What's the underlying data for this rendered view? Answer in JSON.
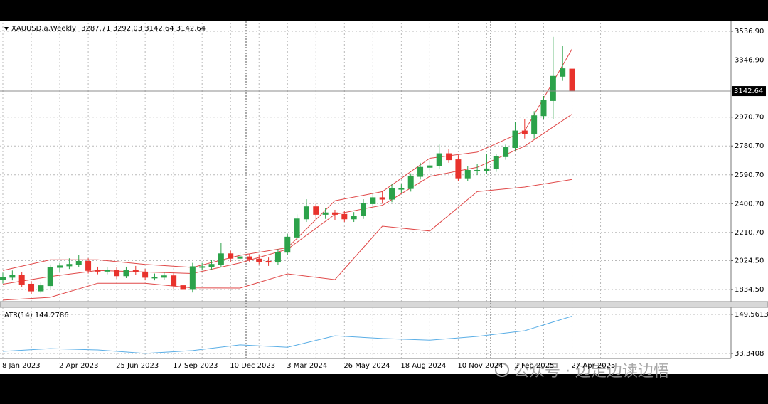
{
  "chart_data": [
    {
      "type": "candlestick",
      "symbol": "XAUUSD.a,Weekly",
      "x": [
        0,
        2,
        4,
        6,
        8,
        10,
        12,
        14,
        16,
        18,
        20,
        22,
        24,
        26,
        28,
        30,
        32,
        34,
        36,
        38,
        40,
        42,
        44,
        46,
        48,
        50,
        52,
        54,
        56,
        58,
        60,
        62,
        64,
        66,
        68,
        70,
        72,
        74,
        76,
        78,
        80,
        82,
        84,
        86,
        88,
        90,
        92,
        94,
        96,
        98,
        100,
        102,
        104,
        106,
        108,
        110,
        112,
        114,
        116,
        118,
        120
      ],
      "open": [
        1900,
        1915,
        1930,
        1870,
        1825,
        1860,
        1980,
        1990,
        2000,
        2020,
        1960,
        1955,
        1960,
        1925,
        1960,
        1950,
        1915,
        1915,
        1925,
        1860,
        1835,
        1985,
        1985,
        2000,
        2070,
        2040,
        2050,
        2035,
        2020,
        2015,
        2080,
        2180,
        2300,
        2380,
        2330,
        2340,
        2330,
        2300,
        2320,
        2400,
        2440,
        2430,
        2500,
        2500,
        2580,
        2640,
        2650,
        2730,
        2690,
        2570,
        2620,
        2620,
        2630,
        2710,
        2770,
        2880,
        2860,
        2980,
        3080,
        3240,
        3287.71
      ],
      "high": [
        1945,
        1960,
        1950,
        1890,
        1880,
        2000,
        2010,
        2040,
        2060,
        2040,
        1985,
        1985,
        1980,
        1985,
        1990,
        1970,
        1940,
        1950,
        1945,
        1880,
        2010,
        2010,
        2030,
        2140,
        2090,
        2080,
        2070,
        2060,
        2045,
        2100,
        2200,
        2330,
        2430,
        2400,
        2370,
        2360,
        2350,
        2345,
        2430,
        2470,
        2480,
        2530,
        2530,
        2600,
        2670,
        2690,
        2790,
        2760,
        2720,
        2650,
        2660,
        2730,
        2730,
        2790,
        2940,
        2960,
        3010,
        3110,
        3500,
        3440,
        3292.03
      ],
      "low": [
        1875,
        1895,
        1850,
        1805,
        1810,
        1840,
        1950,
        1970,
        1980,
        1940,
        1935,
        1935,
        1905,
        1910,
        1930,
        1895,
        1895,
        1900,
        1840,
        1810,
        1815,
        1960,
        1965,
        1980,
        2015,
        2020,
        2015,
        2000,
        1990,
        1995,
        2060,
        2160,
        2280,
        2300,
        2300,
        2290,
        2280,
        2280,
        2300,
        2380,
        2400,
        2410,
        2470,
        2480,
        2560,
        2610,
        2630,
        2670,
        2550,
        2550,
        2590,
        2600,
        2610,
        2690,
        2750,
        2830,
        2830,
        2960,
        2960,
        3210,
        3142.64
      ],
      "close": [
        1915,
        1930,
        1870,
        1825,
        1860,
        1980,
        1990,
        2000,
        2020,
        1960,
        1955,
        1960,
        1925,
        1960,
        1950,
        1915,
        1915,
        1925,
        1860,
        1835,
        1985,
        1985,
        2000,
        2070,
        2040,
        2050,
        2035,
        2020,
        2015,
        2080,
        2180,
        2300,
        2380,
        2330,
        2340,
        2330,
        2300,
        2320,
        2400,
        2440,
        2430,
        2500,
        2500,
        2580,
        2640,
        2650,
        2730,
        2690,
        2570,
        2620,
        2620,
        2630,
        2710,
        2770,
        2880,
        2860,
        2980,
        3080,
        3240,
        3290,
        3142.64
      ],
      "up_color": "#2ca24a",
      "down_color": "#e8322c",
      "bands": {
        "color": "#e04848",
        "x": [
          0,
          10,
          20,
          30,
          40,
          50,
          60,
          70,
          80,
          90,
          100,
          110,
          120
        ],
        "series": [
          {
            "values": [
              1960,
              2030,
              2030,
              2000,
              1980,
              2060,
              2110,
              2420,
              2480,
              2700,
              2740,
              2880,
              3420
            ]
          },
          {
            "values": [
              1870,
              1920,
              1960,
              1950,
              1940,
              2010,
              2100,
              2330,
              2390,
              2580,
              2640,
              2780,
              2990
            ]
          },
          {
            "values": [
              1765,
              1783,
              1876,
              1876,
              1845,
              1844,
              1938,
              1900,
              2252,
              2220,
              2480,
              2510,
              2560
            ]
          }
        ]
      },
      "xlim": [
        -0.6,
        153.5
      ],
      "ylim": [
        1755,
        3593
      ],
      "xticks": [
        {
          "value": 0,
          "label": "8 Jan 2023"
        },
        {
          "value": 12,
          "label": "2 Apr 2023"
        },
        {
          "value": 24,
          "label": "25 Jun 2023"
        },
        {
          "value": 36,
          "label": "17 Sep 2023"
        },
        {
          "value": 48,
          "label": "10 Dec 2023"
        },
        {
          "value": 60,
          "label": "3 Mar 2024"
        },
        {
          "value": 72,
          "label": "26 May 2024"
        },
        {
          "value": 84,
          "label": "18 Aug 2024"
        },
        {
          "value": 96,
          "label": "10 Nov 2024"
        },
        {
          "value": 108,
          "label": "2 Feb 2025"
        },
        {
          "value": 120,
          "label": "27 Apr 2025"
        }
      ],
      "yticks": [
        {
          "value": 1834.5,
          "label": "1834.50"
        },
        {
          "value": 2024.5,
          "label": "2024.50"
        },
        {
          "value": 2210.7,
          "label": "2210.70"
        },
        {
          "value": 2400.7,
          "label": "2400.70"
        },
        {
          "value": 2590.7,
          "label": "2590.70"
        },
        {
          "value": 2780.7,
          "label": "2780.70"
        },
        {
          "value": 2970.7,
          "label": "2970.70"
        },
        {
          "value": 3346.9,
          "label": "3346.90"
        },
        {
          "value": 3536.9,
          "label": "3536.90"
        }
      ],
      "grid": true
    },
    {
      "type": "line",
      "name": "ATR(14)",
      "x": [
        0,
        10,
        20,
        30,
        40,
        50,
        60,
        70,
        80,
        90,
        100,
        110,
        120
      ],
      "values": [
        39.7,
        48,
        44,
        33.5,
        42,
        59,
        52,
        86,
        78,
        73,
        84,
        101,
        144.2786
      ],
      "color": "#5aaee6",
      "xlim": [
        -0.6,
        153.5
      ],
      "ylim": [
        18.55,
        170.7
      ],
      "yticks": [
        33.3408,
        149.5613
      ],
      "grid": true
    }
  ],
  "watermark": "公众号 · 边走边读边悟"
}
